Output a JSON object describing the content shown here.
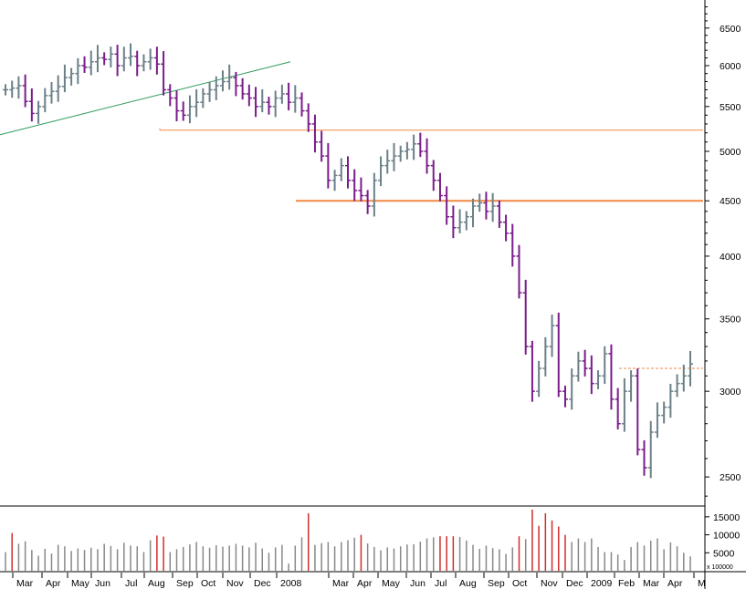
{
  "chart_data": [
    {
      "type": "ohlc",
      "scale": "log",
      "ylim": [
        2350,
        6900
      ],
      "y_ticks": [
        2500,
        3000,
        3500,
        4000,
        4500,
        5000,
        5500,
        6000,
        6500
      ],
      "y_tick_labels": [
        "2500",
        "3000",
        "3500",
        "4000",
        "4500",
        "5000",
        "5500",
        "6000",
        "6500"
      ],
      "x_tick_labels": [
        "Mar",
        "Apr",
        "May",
        "Jun",
        "Jul",
        "Aug",
        "Sep",
        "Oct",
        "Nov",
        "Dec",
        "2008",
        "Mar",
        "Apr",
        "May",
        "Jun",
        "Jul",
        "Aug",
        "Sep",
        "Oct",
        "Nov",
        "Dec",
        "2009",
        "Feb",
        "Mar",
        "Apr",
        "M"
      ],
      "grid": false,
      "colors": {
        "up": "#6b8088",
        "down": "#7a1c8a",
        "trend": "#2e9b5c",
        "support": "#ee8844",
        "resistance_dashed": "#ee8844"
      },
      "closes": [
        5700,
        5720,
        5750,
        5560,
        5420,
        5500,
        5630,
        5680,
        5740,
        5850,
        5900,
        6000,
        5980,
        6050,
        6100,
        6080,
        6150,
        6000,
        6100,
        6120,
        6000,
        6050,
        6100,
        6020,
        5700,
        5600,
        5450,
        5400,
        5500,
        5550,
        5650,
        5700,
        5750,
        5800,
        5850,
        5750,
        5650,
        5600,
        5500,
        5550,
        5500,
        5600,
        5650,
        5550,
        5600,
        5450,
        5300,
        5100,
        4950,
        4700,
        4750,
        4850,
        4700,
        4600,
        4550,
        4450,
        4700,
        4850,
        4900,
        4950,
        5000,
        5020,
        5080,
        5000,
        4850,
        4700,
        4550,
        4350,
        4250,
        4300,
        4350,
        4450,
        4480,
        4400,
        4450,
        4300,
        4200,
        4000,
        3700,
        3300,
        3000,
        3150,
        3300,
        3450,
        3000,
        2950,
        3100,
        3200,
        3150,
        3050,
        3100,
        3250,
        2950,
        2800,
        3000,
        3100,
        2650,
        2550,
        2750,
        2850,
        2900,
        3000,
        3050,
        3100,
        3180
      ],
      "horizontal_levels": [
        {
          "value": 5230,
          "style": "solid"
        },
        {
          "value": 4500,
          "style": "solid-bold"
        },
        {
          "value": 3150,
          "style": "dashed"
        }
      ],
      "trendline": {
        "from": 5180,
        "to": 6050
      }
    },
    {
      "type": "bar",
      "panel": "volume",
      "ylim": [
        0,
        17500
      ],
      "y_ticks": [
        5000,
        10000,
        15000
      ],
      "y_tick_labels": [
        "5000",
        "10000",
        "15000"
      ],
      "scale_label": "x 100000",
      "values": [
        5200,
        10500,
        7500,
        8200,
        5800,
        4200,
        6100,
        4800,
        7200,
        6800,
        5500,
        6200,
        5800,
        6400,
        6000,
        7500,
        6900,
        6000,
        7800,
        7000,
        6800,
        5200,
        8500,
        9800,
        9500,
        5200,
        6000,
        6600,
        7300,
        8000,
        6800,
        6400,
        7100,
        6700,
        7000,
        7500,
        7000,
        6500,
        7800,
        6200,
        5000,
        6500,
        7200,
        2000,
        7000,
        9300,
        16000,
        7200,
        7700,
        8000,
        6800,
        8000,
        8500,
        9200,
        10000,
        7600,
        6600,
        5700,
        6500,
        6200,
        6800,
        7300,
        7400,
        8100,
        9000,
        9300,
        9600,
        9600,
        9600,
        9400,
        8400,
        7200,
        6100,
        7000,
        6300,
        6000,
        4700,
        6500,
        9600,
        8800,
        17000,
        12500,
        16000,
        14000,
        12300,
        10000,
        8000,
        9000,
        8000,
        9000,
        6600,
        5200,
        5200,
        4500,
        3000,
        6600,
        8000,
        7000,
        8400,
        9000,
        6000,
        7900,
        6800,
        5000,
        4000
      ]
    }
  ]
}
